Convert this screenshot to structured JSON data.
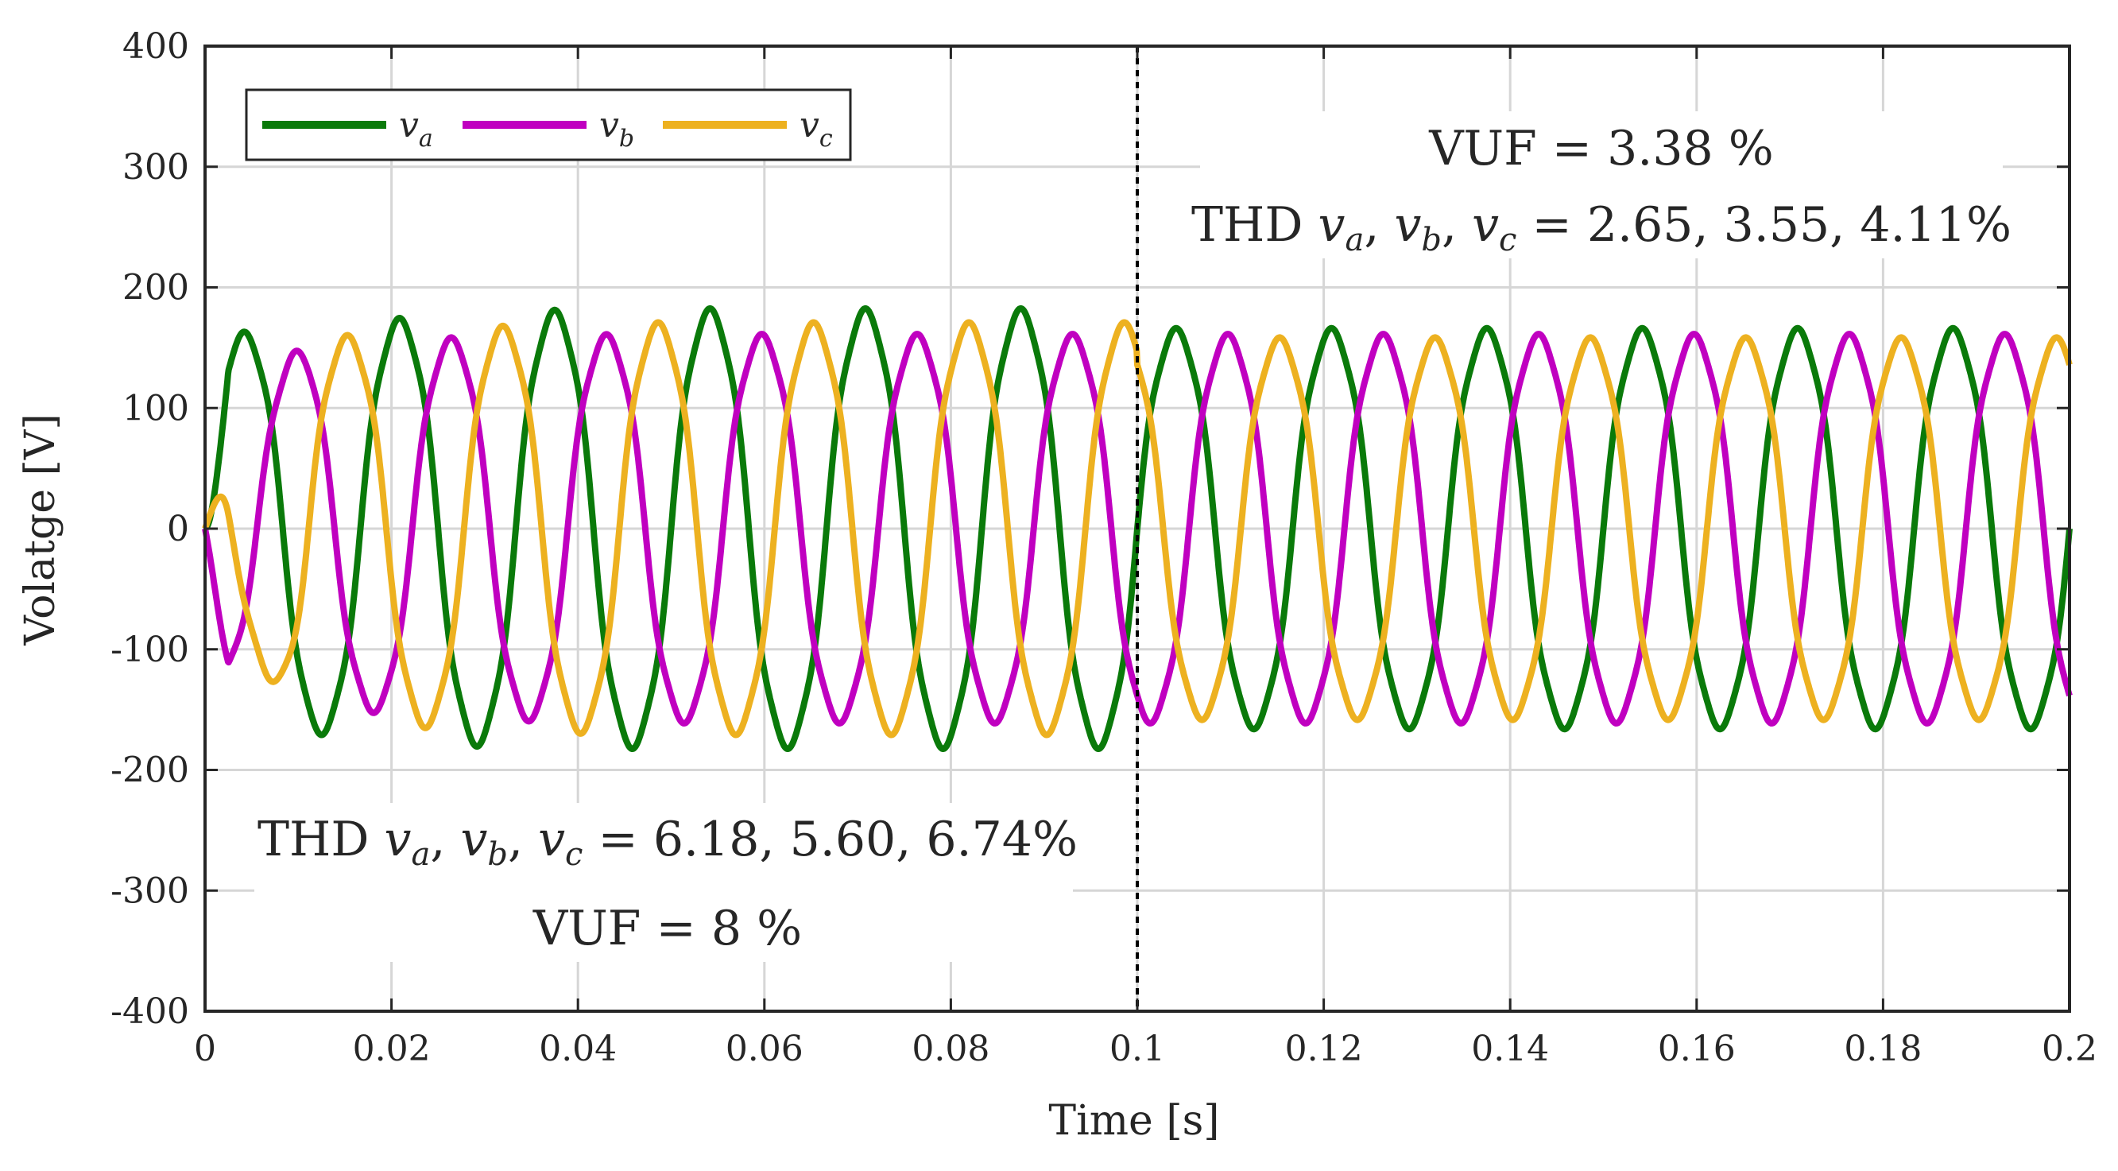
{
  "chart_data": {
    "type": "line",
    "title": "",
    "xlabel": "Time [s]",
    "ylabel": "Volatge [V]",
    "xlim": [
      0,
      0.2
    ],
    "ylim": [
      -400,
      400
    ],
    "grid": true,
    "legend_position": "top-left",
    "xticks": [
      0,
      0.02,
      0.04,
      0.06,
      0.08,
      0.1,
      0.12,
      0.14,
      0.16,
      0.18,
      0.2
    ],
    "xtick_labels": [
      "0",
      "0.02",
      "0.04",
      "0.06",
      "0.08",
      "0.1",
      "0.12",
      "0.14",
      "0.16",
      "0.18",
      "0.2"
    ],
    "yticks": [
      400,
      300,
      200,
      100,
      0,
      -100,
      -200,
      -300,
      -400
    ],
    "ytick_labels": [
      "400",
      "300",
      "200",
      "100",
      "0",
      "-100",
      "-200",
      "-300",
      "-400"
    ],
    "switch_time": 0.1,
    "frequency_hz": 60,
    "series": [
      {
        "name": "v_a",
        "legend": {
          "main": "v",
          "sub": "a"
        },
        "color": "#0a7a0a",
        "phase_deg": 0,
        "amplitude_before": [
          165,
          178,
          188,
          190,
          190,
          190
        ],
        "amplitude_after": 173
      },
      {
        "name": "v_b",
        "legend": {
          "main": "v",
          "sub": "b"
        },
        "color": "#c000c0",
        "phase_deg": -120,
        "amplitude_before": [
          120,
          158,
          166,
          168,
          168,
          168
        ],
        "amplitude_after": 168
      },
      {
        "name": "v_c",
        "legend": {
          "main": "v",
          "sub": "c"
        },
        "color": "#edb120",
        "phase_deg": 120,
        "amplitude_before": [
          70,
          167,
          175,
          178,
          178,
          178
        ],
        "amplitude_after": 165
      }
    ],
    "annotations": {
      "after_vuf": "VUF = 3.38 %",
      "after_thd_prefix": "THD",
      "after_thd_values": "= 2.65, 3.55, 4.11%",
      "before_thd_prefix": "THD",
      "before_thd_values": "= 6.18, 5.60, 6.74%",
      "before_vuf": "VUF = 8 %"
    }
  }
}
